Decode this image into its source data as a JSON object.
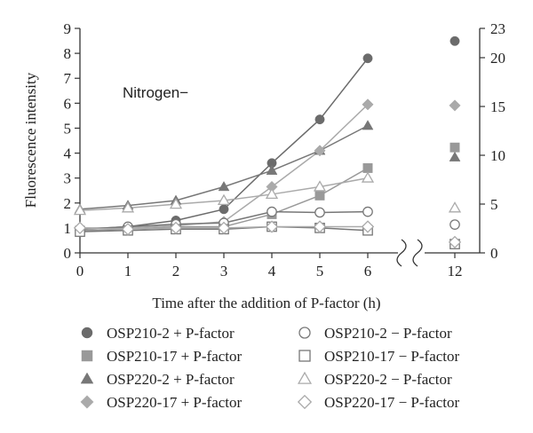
{
  "chart_data": {
    "type": "line",
    "xlabel": "Time after the addition of P-factor (h)",
    "ylabel": "Fluorescence intensity",
    "annotation": "Nitrogen−",
    "x": [
      0,
      1,
      2,
      3,
      4,
      5,
      6
    ],
    "x_ticks": [
      "0",
      "1",
      "2",
      "3",
      "4",
      "5",
      "6"
    ],
    "x_break_tick": "12",
    "x_break": 12,
    "ylim": [
      0,
      9
    ],
    "y_ticks": [
      "0",
      "1",
      "2",
      "3",
      "4",
      "5",
      "6",
      "7",
      "8",
      "9"
    ],
    "y2lim": [
      0,
      23
    ],
    "y2_ticks": [
      "0",
      "5",
      "10",
      "15",
      "20"
    ],
    "series": [
      {
        "name": "OSP210-2 + P-factor",
        "marker": "circle",
        "filled": true,
        "color": "#6b6b6b",
        "values": [
          0.95,
          1.05,
          1.3,
          1.75,
          3.6,
          5.35,
          7.8
        ],
        "value_12h": 21.7
      },
      {
        "name": "OSP210-17 + P-factor",
        "marker": "square",
        "filled": true,
        "color": "#999999",
        "values": [
          0.9,
          0.95,
          1.05,
          1.05,
          1.55,
          2.3,
          3.4
        ],
        "value_12h": 10.8
      },
      {
        "name": "OSP220-2 + P-factor",
        "marker": "triangle",
        "filled": true,
        "color": "#777777",
        "values": [
          1.75,
          1.9,
          2.1,
          2.65,
          3.3,
          4.1,
          5.1
        ],
        "value_12h": 9.8
      },
      {
        "name": "OSP220-17 + P-factor",
        "marker": "diamond",
        "filled": true,
        "color": "#aaaaaa",
        "values": [
          1.0,
          1.0,
          1.1,
          1.25,
          2.65,
          4.1,
          5.95
        ],
        "value_12h": 15.1
      },
      {
        "name": "OSP210-2 − P-factor",
        "marker": "circle",
        "filled": false,
        "color": "#777777",
        "values": [
          0.95,
          1.05,
          1.15,
          1.2,
          1.65,
          1.62,
          1.65
        ],
        "value_12h": 2.9
      },
      {
        "name": "OSP210-17 − P-factor",
        "marker": "square",
        "filled": false,
        "color": "#777777",
        "values": [
          0.85,
          0.9,
          0.95,
          0.95,
          1.05,
          1.0,
          0.9
        ],
        "value_12h": 0.9
      },
      {
        "name": "OSP220-2 − P-factor",
        "marker": "triangle",
        "filled": false,
        "color": "#aaaaaa",
        "values": [
          1.7,
          1.8,
          1.95,
          2.1,
          2.35,
          2.65,
          3.0
        ],
        "value_12h": 4.6
      },
      {
        "name": "OSP220-17 − P-factor",
        "marker": "diamond",
        "filled": false,
        "color": "#aaaaaa",
        "values": [
          1.0,
          0.95,
          1.0,
          1.0,
          1.05,
          1.05,
          1.05
        ],
        "value_12h": 1.1
      }
    ],
    "legend_position": "bottom",
    "grid": false
  }
}
